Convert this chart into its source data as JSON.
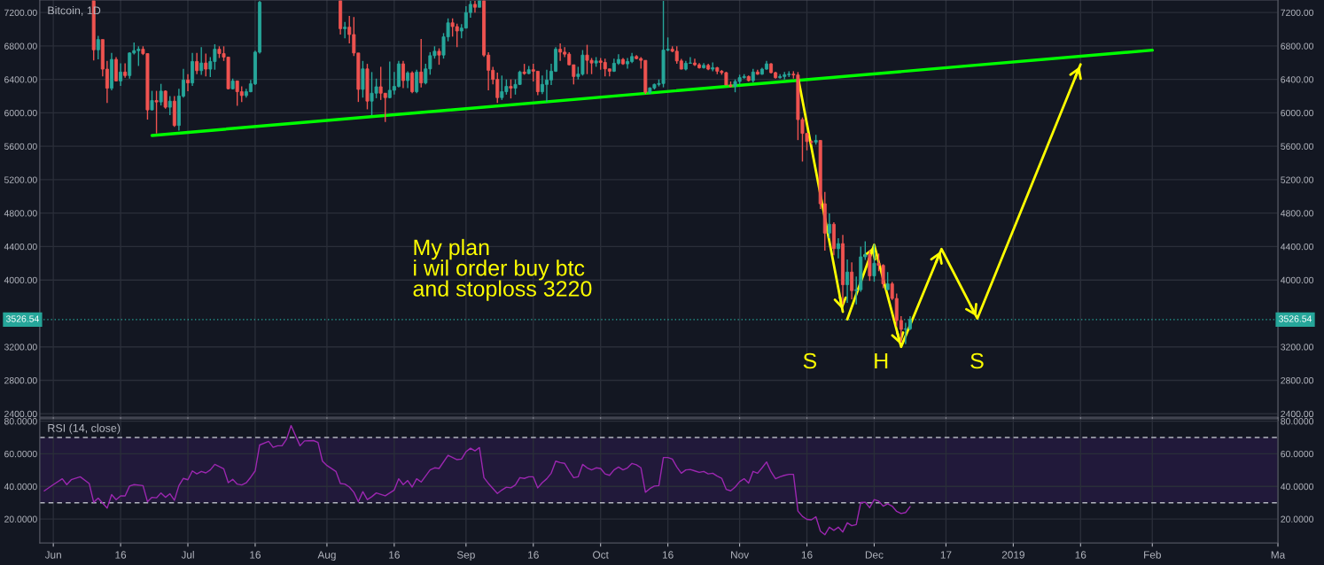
{
  "chart_data": [
    {
      "type": "candlestick",
      "title": "Bitcoin, 1D",
      "x": [
        "2018-06-10",
        "2018-06-11",
        "2018-06-12",
        "2018-06-13",
        "2018-06-14",
        "2018-06-15",
        "2018-06-16",
        "2018-06-17",
        "2018-06-18",
        "2018-06-19",
        "2018-06-20",
        "2018-06-21",
        "2018-06-22",
        "2018-06-23",
        "2018-06-24",
        "2018-06-25",
        "2018-06-26",
        "2018-06-27",
        "2018-06-28",
        "2018-06-29",
        "2018-06-30",
        "2018-07-01",
        "2018-07-02",
        "2018-07-03",
        "2018-07-04",
        "2018-07-05",
        "2018-07-06",
        "2018-07-07",
        "2018-07-08",
        "2018-07-09",
        "2018-07-10",
        "2018-07-11",
        "2018-07-12",
        "2018-07-13",
        "2018-07-14",
        "2018-07-15",
        "2018-07-16",
        "2018-07-17",
        "2018-08-04",
        "2018-08-05",
        "2018-08-06",
        "2018-08-07",
        "2018-08-08",
        "2018-08-09",
        "2018-08-10",
        "2018-08-11",
        "2018-08-12",
        "2018-08-13",
        "2018-08-14",
        "2018-08-15",
        "2018-08-16",
        "2018-08-17",
        "2018-08-18",
        "2018-08-19",
        "2018-08-20",
        "2018-08-21",
        "2018-08-22",
        "2018-08-23",
        "2018-08-24",
        "2018-08-25",
        "2018-08-26",
        "2018-08-27",
        "2018-08-28",
        "2018-08-29",
        "2018-08-30",
        "2018-08-31",
        "2018-09-01",
        "2018-09-02",
        "2018-09-03",
        "2018-09-04",
        "2018-09-05",
        "2018-09-06",
        "2018-09-07",
        "2018-09-08",
        "2018-09-09",
        "2018-09-10",
        "2018-09-11",
        "2018-09-12",
        "2018-09-13",
        "2018-09-14",
        "2018-09-15",
        "2018-09-16",
        "2018-09-17",
        "2018-09-18",
        "2018-09-19",
        "2018-09-20",
        "2018-09-21",
        "2018-09-22",
        "2018-09-23",
        "2018-09-24",
        "2018-09-25",
        "2018-09-26",
        "2018-09-27",
        "2018-09-28",
        "2018-09-29",
        "2018-09-30",
        "2018-10-01",
        "2018-10-02",
        "2018-10-03",
        "2018-10-04",
        "2018-10-05",
        "2018-10-06",
        "2018-10-07",
        "2018-10-08",
        "2018-10-09",
        "2018-10-10",
        "2018-10-11",
        "2018-10-12",
        "2018-10-13",
        "2018-10-14",
        "2018-10-15",
        "2018-10-16",
        "2018-10-17",
        "2018-10-18",
        "2018-10-19",
        "2018-10-20",
        "2018-10-21",
        "2018-10-22",
        "2018-10-23",
        "2018-10-24",
        "2018-10-25",
        "2018-10-26",
        "2018-10-27",
        "2018-10-28",
        "2018-10-29",
        "2018-10-30",
        "2018-10-31",
        "2018-11-01",
        "2018-11-02",
        "2018-11-03",
        "2018-11-04",
        "2018-11-05",
        "2018-11-06",
        "2018-11-07",
        "2018-11-08",
        "2018-11-09",
        "2018-11-10",
        "2018-11-11",
        "2018-11-12",
        "2018-11-13",
        "2018-11-14",
        "2018-11-15",
        "2018-11-16",
        "2018-11-17",
        "2018-11-18",
        "2018-11-19",
        "2018-11-20",
        "2018-11-21",
        "2018-11-22",
        "2018-11-23",
        "2018-11-24",
        "2018-11-25",
        "2018-11-26",
        "2018-11-27",
        "2018-11-28",
        "2018-11-29",
        "2018-11-30",
        "2018-12-01",
        "2018-12-02",
        "2018-12-03",
        "2018-12-04",
        "2018-12-05",
        "2018-12-06",
        "2018-12-07",
        "2018-12-08",
        "2018-12-09"
      ],
      "ohlc": [
        [
          7340,
          7340,
          6628,
          6754
        ],
        [
          6754,
          6920,
          6640,
          6877
        ],
        [
          6877,
          6877,
          6435,
          6523
        ],
        [
          6523,
          6621,
          6119,
          6295
        ],
        [
          6295,
          6716,
          6270,
          6639
        ],
        [
          6639,
          6667,
          6375,
          6382
        ],
        [
          6382,
          6593,
          6323,
          6488
        ],
        [
          6488,
          6593,
          6421,
          6446
        ],
        [
          6446,
          6726,
          6410,
          6716
        ],
        [
          6716,
          6842,
          6698,
          6744
        ],
        [
          6744,
          6796,
          6561,
          6761
        ],
        [
          6761,
          6796,
          6691,
          6709
        ],
        [
          6709,
          6709,
          5919,
          6035
        ],
        [
          6035,
          6263,
          6030,
          6147
        ],
        [
          6147,
          6263,
          5754,
          6130
        ],
        [
          6130,
          6347,
          6088,
          6260
        ],
        [
          6260,
          6270,
          6049,
          6067
        ],
        [
          6067,
          6200,
          5972,
          6140
        ],
        [
          6140,
          6200,
          5831,
          5849
        ],
        [
          5849,
          6288,
          5786,
          6200
        ],
        [
          6200,
          6526,
          6182,
          6393
        ],
        [
          6393,
          6463,
          6260,
          6358
        ],
        [
          6358,
          6716,
          6323,
          6614
        ],
        [
          6614,
          6716,
          6463,
          6505
        ],
        [
          6505,
          6786,
          6456,
          6596
        ],
        [
          6596,
          6709,
          6435,
          6523
        ],
        [
          6523,
          6667,
          6428,
          6614
        ],
        [
          6614,
          6821,
          6516,
          6761
        ],
        [
          6761,
          6796,
          6656,
          6709
        ],
        [
          6709,
          6796,
          6621,
          6667
        ],
        [
          6667,
          6667,
          6280,
          6288
        ],
        [
          6288,
          6410,
          6280,
          6382
        ],
        [
          6382,
          6382,
          6084,
          6253
        ],
        [
          6253,
          6316,
          6130,
          6207
        ],
        [
          6207,
          6288,
          6182,
          6253
        ],
        [
          6253,
          6393,
          6246,
          6347
        ],
        [
          6347,
          6744,
          6333,
          6726
        ],
        [
          6726,
          7340,
          6710,
          7323
        ],
        [
          7340,
          7340,
          6937,
          7007
        ],
        [
          7007,
          7088,
          6891,
          7025
        ],
        [
          7025,
          7158,
          6832,
          6937
        ],
        [
          6937,
          7147,
          6681,
          6716
        ],
        [
          6716,
          6716,
          6130,
          6281
        ],
        [
          6281,
          6621,
          6182,
          6526
        ],
        [
          6526,
          6586,
          6042,
          6140
        ],
        [
          6140,
          6488,
          5972,
          6235
        ],
        [
          6235,
          6410,
          6175,
          6312
        ],
        [
          6312,
          6551,
          6154,
          6235
        ],
        [
          6235,
          6235,
          5891,
          6182
        ],
        [
          6182,
          6614,
          6175,
          6270
        ],
        [
          6270,
          6488,
          6218,
          6316
        ],
        [
          6316,
          6621,
          6305,
          6586
        ],
        [
          6586,
          6621,
          6295,
          6386
        ],
        [
          6386,
          6498,
          6295,
          6477
        ],
        [
          6477,
          6498,
          6235,
          6253
        ],
        [
          6253,
          6516,
          6235,
          6488
        ],
        [
          6488,
          6884,
          6305,
          6358
        ],
        [
          6358,
          6586,
          6340,
          6526
        ],
        [
          6526,
          6726,
          6456,
          6684
        ],
        [
          6684,
          6796,
          6649,
          6737
        ],
        [
          6737,
          6772,
          6575,
          6691
        ],
        [
          6691,
          6954,
          6649,
          6909
        ],
        [
          6909,
          7130,
          6856,
          7077
        ],
        [
          7077,
          7130,
          6912,
          7032
        ],
        [
          7032,
          7067,
          6786,
          6979
        ],
        [
          6979,
          7060,
          6891,
          7014
        ],
        [
          7014,
          7277,
          7007,
          7200
        ],
        [
          7200,
          7340,
          7137,
          7298
        ],
        [
          7298,
          7340,
          7200,
          7263
        ],
        [
          7263,
          7340,
          7263,
          7340
        ],
        [
          7340,
          7340,
          6670,
          6691
        ],
        [
          6691,
          6726,
          6270,
          6509
        ],
        [
          6509,
          6551,
          6340,
          6400
        ],
        [
          6400,
          6481,
          6119,
          6182
        ],
        [
          6182,
          6446,
          6154,
          6253
        ],
        [
          6253,
          6400,
          6218,
          6316
        ],
        [
          6316,
          6400,
          6172,
          6295
        ],
        [
          6295,
          6400,
          6218,
          6340
        ],
        [
          6340,
          6505,
          6333,
          6488
        ],
        [
          6488,
          6586,
          6456,
          6470
        ],
        [
          6470,
          6561,
          6463,
          6516
        ],
        [
          6516,
          6586,
          6375,
          6498
        ],
        [
          6498,
          6498,
          6210,
          6253
        ],
        [
          6253,
          6446,
          6224,
          6340
        ],
        [
          6340,
          6516,
          6130,
          6393
        ],
        [
          6393,
          6586,
          6333,
          6498
        ],
        [
          6498,
          6786,
          6488,
          6761
        ],
        [
          6761,
          6832,
          6621,
          6726
        ],
        [
          6726,
          6786,
          6667,
          6702
        ],
        [
          6702,
          6726,
          6568,
          6575
        ],
        [
          6575,
          6575,
          6340,
          6435
        ],
        [
          6435,
          6551,
          6400,
          6463
        ],
        [
          6463,
          6751,
          6446,
          6691
        ],
        [
          6691,
          6814,
          6463,
          6628
        ],
        [
          6628,
          6656,
          6463,
          6596
        ],
        [
          6596,
          6667,
          6551,
          6621
        ],
        [
          6621,
          6656,
          6516,
          6603
        ],
        [
          6603,
          6649,
          6435,
          6526
        ],
        [
          6526,
          6526,
          6435,
          6498
        ],
        [
          6498,
          6649,
          6490,
          6593
        ],
        [
          6593,
          6702,
          6575,
          6639
        ],
        [
          6639,
          6656,
          6575,
          6586
        ],
        [
          6586,
          6656,
          6530,
          6614
        ],
        [
          6614,
          6716,
          6596,
          6674
        ],
        [
          6674,
          6691,
          6639,
          6649
        ],
        [
          6649,
          6667,
          6530,
          6628
        ],
        [
          6628,
          6628,
          6225,
          6246
        ],
        [
          6246,
          6305,
          6225,
          6298
        ],
        [
          6298,
          6350,
          6280,
          6340
        ],
        [
          6340,
          6400,
          6316,
          6351
        ],
        [
          6351,
          7340,
          6305,
          6751
        ],
        [
          6751,
          6902,
          6737,
          6761
        ],
        [
          6761,
          6796,
          6726,
          6737
        ],
        [
          6737,
          6796,
          6586,
          6621
        ],
        [
          6621,
          6646,
          6520,
          6523
        ],
        [
          6523,
          6621,
          6509,
          6593
        ],
        [
          6593,
          6667,
          6586,
          6596
        ],
        [
          6596,
          6649,
          6561,
          6575
        ],
        [
          6575,
          6596,
          6530,
          6540
        ],
        [
          6540,
          6596,
          6530,
          6568
        ],
        [
          6568,
          6586,
          6510,
          6523
        ],
        [
          6523,
          6603,
          6498,
          6540
        ],
        [
          6540,
          6551,
          6463,
          6498
        ],
        [
          6498,
          6512,
          6456,
          6481
        ],
        [
          6481,
          6491,
          6333,
          6333
        ],
        [
          6333,
          6375,
          6305,
          6316
        ],
        [
          6316,
          6400,
          6246,
          6375
        ],
        [
          6375,
          6456,
          6340,
          6421
        ],
        [
          6421,
          6463,
          6410,
          6435
        ],
        [
          6435,
          6446,
          6375,
          6386
        ],
        [
          6386,
          6526,
          6365,
          6488
        ],
        [
          6488,
          6516,
          6456,
          6463
        ],
        [
          6463,
          6540,
          6456,
          6523
        ],
        [
          6523,
          6621,
          6516,
          6586
        ],
        [
          6586,
          6596,
          6470,
          6481
        ],
        [
          6481,
          6491,
          6410,
          6421
        ],
        [
          6421,
          6463,
          6410,
          6435
        ],
        [
          6435,
          6488,
          6400,
          6456
        ],
        [
          6456,
          6498,
          6428,
          6463
        ],
        [
          6463,
          6498,
          6410,
          6453
        ],
        [
          6453,
          6488,
          5674,
          5919
        ],
        [
          5919,
          5945,
          5417,
          5754
        ],
        [
          5754,
          5754,
          5551,
          5656
        ],
        [
          5656,
          5670,
          5620,
          5649
        ],
        [
          5649,
          5737,
          5620,
          5670
        ],
        [
          5670,
          5670,
          4850,
          4912
        ],
        [
          4912,
          5053,
          4351,
          4561
        ],
        [
          4561,
          4796,
          4500,
          4667
        ],
        [
          4667,
          4690,
          4295,
          4375
        ],
        [
          4375,
          4500,
          4260,
          4435
        ],
        [
          4435,
          4540,
          3709,
          3944
        ],
        [
          3944,
          4245,
          3726,
          4095
        ],
        [
          4095,
          4210,
          3768,
          3873
        ],
        [
          3873,
          4042,
          3709,
          3884
        ],
        [
          3884,
          4400,
          3860,
          4277
        ],
        [
          4277,
          4463,
          4240,
          4305
        ],
        [
          4305,
          4358,
          3989,
          4049
        ],
        [
          4049,
          4428,
          3979,
          4200
        ],
        [
          4200,
          4316,
          4105,
          4175
        ],
        [
          4175,
          4189,
          3902,
          3954
        ],
        [
          3884,
          4095,
          3884,
          3954
        ],
        [
          3954,
          3979,
          3761,
          3779
        ],
        [
          3779,
          3839,
          3446,
          3516
        ],
        [
          3516,
          3568,
          3252,
          3410
        ],
        [
          3410,
          3488,
          3235,
          3416
        ],
        [
          3416,
          3568,
          3400,
          3527
        ]
      ],
      "series": [
        {
          "type": "line",
          "color": "#00ff00",
          "x": [
            "2018-06-23",
            "2019-02-01"
          ],
          "values": [
            5730,
            6750
          ]
        },
        {
          "type": "line",
          "color": "#ffff00",
          "x": [
            "2018-11-14",
            "2018-11-24"
          ],
          "values": [
            6430,
            3620
          ]
        },
        {
          "type": "line",
          "color": "#ffff00",
          "x": [
            "2018-11-25",
            "2018-12-01",
            "2018-12-07",
            "2018-12-16",
            "2018-12-24",
            "2019-01-16"
          ],
          "values": [
            3530,
            4420,
            3200,
            4370,
            3540,
            6580
          ]
        }
      ],
      "ref_lines": [
        {
          "axis": "y",
          "value": 3526.54,
          "label": "3526.54",
          "color": "#26a69a",
          "line_style": "dotted"
        }
      ],
      "annotations": [
        "My plan\ni wil order buy btc\nand stoploss 3220",
        "S",
        "H",
        "S"
      ],
      "xlim": [
        "2018-05-29",
        "2019-03-01"
      ],
      "xticks": [
        {
          "value": "2018-06-01",
          "label": null
        },
        {
          "value": "2018-06-16",
          "label": null
        },
        {
          "value": "2018-07-01",
          "label": null
        },
        {
          "value": "2018-07-16",
          "label": null
        },
        {
          "value": "2018-08-01",
          "label": null
        },
        {
          "value": "2018-08-16",
          "label": null
        },
        {
          "value": "2018-09-01",
          "label": null
        },
        {
          "value": "2018-09-16",
          "label": null
        },
        {
          "value": "2018-10-01",
          "label": null
        },
        {
          "value": "2018-10-16",
          "label": null
        },
        {
          "value": "2018-11-01",
          "label": null
        },
        {
          "value": "2018-11-16",
          "label": null
        },
        {
          "value": "2018-12-01",
          "label": null
        },
        {
          "value": "2018-12-17",
          "label": null
        },
        {
          "value": "2019-01-01",
          "label": null
        },
        {
          "value": "2019-01-16",
          "label": null
        },
        {
          "value": "2019-02-01",
          "label": null
        },
        {
          "value": "2019-03-01",
          "label": null
        }
      ],
      "ylim": [
        2360,
        7350
      ],
      "yticks": [
        {
          "value": 2400,
          "label": "2400.00"
        },
        {
          "value": 2800,
          "label": "2800.00"
        },
        {
          "value": 3200,
          "label": "3200.00"
        },
        {
          "value": 4000,
          "label": "4000.00"
        },
        {
          "value": 4400,
          "label": "4400.00"
        },
        {
          "value": 4800,
          "label": "4800.00"
        },
        {
          "value": 5200,
          "label": "5200.00"
        },
        {
          "value": 5600,
          "label": "5600.00"
        },
        {
          "value": 6000,
          "label": "6000.00"
        },
        {
          "value": 6400,
          "label": "6400.00"
        },
        {
          "value": 6800,
          "label": "6800.00"
        },
        {
          "value": 7200,
          "label": "7200.00"
        }
      ],
      "y2lim": [
        2360,
        7350
      ],
      "y2ticks": [
        {
          "value": 2400,
          "label": "2400.00"
        },
        {
          "value": 2800,
          "label": "2800.00"
        },
        {
          "value": 3200,
          "label": "3200.00"
        },
        {
          "value": 4000,
          "label": "4000.00"
        },
        {
          "value": 4400,
          "label": "4400.00"
        },
        {
          "value": 4800,
          "label": "4800.00"
        },
        {
          "value": 5200,
          "label": "5200.00"
        },
        {
          "value": 5600,
          "label": "5600.00"
        },
        {
          "value": 6000,
          "label": "6000.00"
        },
        {
          "value": 6400,
          "label": "6400.00"
        },
        {
          "value": 6800,
          "label": "6800.00"
        },
        {
          "value": 7200,
          "label": "7200.00"
        }
      ],
      "grid": true,
      "tick_labels": "y"
    },
    {
      "type": "line",
      "annotations": [
        "RSI (14, close)"
      ],
      "series": [
        {
          "color": "#9c27b0",
          "x": [
            "2018-05-30",
            "2018-06-01",
            "2018-06-03",
            "2018-06-04",
            "2018-06-05",
            "2018-06-07",
            "2018-06-09",
            "2018-06-10",
            "2018-06-11",
            "2018-06-13",
            "2018-06-14",
            "2018-06-15",
            "2018-06-16",
            "2018-06-17",
            "2018-06-18",
            "2018-06-19",
            "2018-06-21",
            "2018-06-22",
            "2018-06-23",
            "2018-06-24",
            "2018-06-25",
            "2018-06-26",
            "2018-06-27",
            "2018-06-28",
            "2018-06-29",
            "2018-06-30",
            "2018-07-01",
            "2018-07-02",
            "2018-07-03",
            "2018-07-04",
            "2018-07-05",
            "2018-07-06",
            "2018-07-07",
            "2018-07-09",
            "2018-07-10",
            "2018-07-11",
            "2018-07-12",
            "2018-07-13",
            "2018-07-14",
            "2018-07-15",
            "2018-07-16",
            "2018-07-17",
            "2018-07-19",
            "2018-07-20",
            "2018-07-21",
            "2018-07-22",
            "2018-07-23",
            "2018-07-24",
            "2018-07-26",
            "2018-07-27",
            "2018-07-29",
            "2018-07-30",
            "2018-07-31",
            "2018-08-01",
            "2018-08-03",
            "2018-08-04",
            "2018-08-05",
            "2018-08-06",
            "2018-08-07",
            "2018-08-08",
            "2018-08-09",
            "2018-08-10",
            "2018-08-11",
            "2018-08-12",
            "2018-08-14",
            "2018-08-16",
            "2018-08-17",
            "2018-08-18",
            "2018-08-19",
            "2018-08-20",
            "2018-08-21",
            "2018-08-22",
            "2018-08-24",
            "2018-08-25",
            "2018-08-26",
            "2018-08-28",
            "2018-08-30",
            "2018-08-31",
            "2018-09-01",
            "2018-09-02",
            "2018-09-03",
            "2018-09-04",
            "2018-09-05",
            "2018-09-06",
            "2018-09-08",
            "2018-09-09",
            "2018-09-10",
            "2018-09-11",
            "2018-09-12",
            "2018-09-13",
            "2018-09-14",
            "2018-09-15",
            "2018-09-16",
            "2018-09-17",
            "2018-09-18",
            "2018-09-19",
            "2018-09-20",
            "2018-09-21",
            "2018-09-22",
            "2018-09-23",
            "2018-09-24",
            "2018-09-25",
            "2018-09-26",
            "2018-09-27",
            "2018-09-28",
            "2018-09-29",
            "2018-09-30",
            "2018-10-01",
            "2018-10-02",
            "2018-10-03",
            "2018-10-04",
            "2018-10-05",
            "2018-10-06",
            "2018-10-07",
            "2018-10-08",
            "2018-10-09",
            "2018-10-10",
            "2018-10-11",
            "2018-10-12",
            "2018-10-13",
            "2018-10-14",
            "2018-10-15",
            "2018-10-16",
            "2018-10-17",
            "2018-10-18",
            "2018-10-19",
            "2018-10-20",
            "2018-10-21",
            "2018-10-22",
            "2018-10-23",
            "2018-10-24",
            "2018-10-25",
            "2018-10-26",
            "2018-10-27",
            "2018-10-28",
            "2018-10-29",
            "2018-10-30",
            "2018-10-31",
            "2018-11-01",
            "2018-11-02",
            "2018-11-03",
            "2018-11-04",
            "2018-11-05",
            "2018-11-06",
            "2018-11-07",
            "2018-11-08",
            "2018-11-09",
            "2018-11-10",
            "2018-11-11",
            "2018-11-12",
            "2018-11-13",
            "2018-11-14",
            "2018-11-15",
            "2018-11-16",
            "2018-11-17",
            "2018-11-18",
            "2018-11-19",
            "2018-11-20",
            "2018-11-21",
            "2018-11-22",
            "2018-11-23",
            "2018-11-24",
            "2018-11-25",
            "2018-11-26",
            "2018-11-27",
            "2018-11-28",
            "2018-11-29",
            "2018-11-30",
            "2018-12-01",
            "2018-12-02",
            "2018-12-03",
            "2018-12-04",
            "2018-12-05",
            "2018-12-06",
            "2018-12-07",
            "2018-12-08",
            "2018-12-09"
          ],
          "values": [
            37.3,
            41.1,
            44.7,
            41.1,
            44.1,
            45.9,
            41.8,
            30.3,
            32.8,
            26.7,
            35.0,
            31.9,
            34.2,
            34.2,
            40.2,
            41.1,
            40.5,
            30.6,
            33.3,
            33.0,
            36.0,
            33.3,
            35.5,
            31.5,
            40.5,
            44.9,
            44.1,
            49.5,
            47.7,
            49.2,
            48.3,
            50.1,
            53.5,
            50.8,
            42.3,
            44.3,
            41.4,
            40.9,
            42.2,
            45.6,
            49.5,
            65.4,
            67.6,
            64.0,
            64.9,
            64.9,
            69.0,
            77.3,
            64.9,
            67.9,
            68.1,
            67.0,
            55.5,
            52.8,
            49.2,
            41.8,
            41.4,
            39.6,
            36.4,
            30.6,
            36.8,
            31.9,
            33.7,
            36.0,
            34.2,
            37.8,
            44.7,
            41.1,
            43.6,
            39.6,
            44.7,
            42.7,
            50.1,
            51.4,
            51.0,
            59.1,
            56.4,
            56.8,
            61.3,
            63.4,
            61.8,
            63.8,
            45.4,
            41.8,
            35.7,
            37.8,
            39.5,
            39.1,
            40.9,
            45.4,
            44.9,
            45.9,
            45.9,
            39.1,
            42.3,
            44.7,
            48.1,
            55.5,
            54.6,
            54.1,
            49.5,
            45.4,
            45.9,
            53.5,
            51.4,
            50.1,
            51.4,
            51.0,
            47.7,
            46.8,
            50.1,
            51.9,
            50.1,
            51.4,
            54.1,
            53.2,
            51.4,
            36.4,
            38.7,
            40.2,
            40.5,
            57.7,
            57.7,
            56.8,
            51.9,
            48.1,
            50.1,
            50.4,
            49.5,
            48.6,
            49.2,
            47.7,
            48.1,
            46.3,
            45.0,
            38.2,
            37.3,
            39.6,
            42.9,
            44.7,
            42.0,
            49.2,
            48.1,
            51.4,
            55.0,
            49.0,
            44.7,
            45.9,
            46.8,
            47.4,
            47.4,
            24.9,
            21.6,
            19.8,
            19.5,
            21.4,
            12.6,
            10.4,
            15.0,
            13.1,
            15.0,
            12.1,
            17.7,
            15.9,
            16.6,
            30.1,
            30.3,
            27.0,
            31.9,
            31.0,
            27.9,
            29.4,
            27.9,
            24.7,
            23.4,
            24.0,
            27.6
          ]
        }
      ],
      "bands": [
        {
          "axis": "y",
          "from": 30,
          "to": 70,
          "color": "#21193a"
        }
      ],
      "ref_lines": [
        {
          "axis": "y",
          "value": 70,
          "color": "#b2b5be",
          "line_style": "dashed"
        },
        {
          "axis": "y",
          "value": 30,
          "color": "#b2b5be",
          "line_style": "dashed"
        }
      ],
      "xlim": [
        "2018-05-29",
        "2019-03-01"
      ],
      "xticks": [
        {
          "value": "2018-06-01",
          "label": "Jun"
        },
        {
          "value": "2018-06-16",
          "label": "16"
        },
        {
          "value": "2018-07-01",
          "label": "Jul"
        },
        {
          "value": "2018-07-16",
          "label": "16"
        },
        {
          "value": "2018-08-01",
          "label": "Aug"
        },
        {
          "value": "2018-08-16",
          "label": "16"
        },
        {
          "value": "2018-09-01",
          "label": "Sep"
        },
        {
          "value": "2018-09-16",
          "label": "16"
        },
        {
          "value": "2018-10-01",
          "label": "Oct"
        },
        {
          "value": "2018-10-16",
          "label": "16"
        },
        {
          "value": "2018-11-01",
          "label": "Nov"
        },
        {
          "value": "2018-11-16",
          "label": "16"
        },
        {
          "value": "2018-12-01",
          "label": "Dec"
        },
        {
          "value": "2018-12-17",
          "label": "17"
        },
        {
          "value": "2019-01-01",
          "label": "2019"
        },
        {
          "value": "2019-01-16",
          "label": "16"
        },
        {
          "value": "2019-02-01",
          "label": "Feb"
        },
        {
          "value": "2019-03-01",
          "label": "Ma"
        }
      ],
      "ylim": [
        5.4,
        81.4
      ],
      "yticks": [
        {
          "value": 20,
          "label": "20.0000"
        },
        {
          "value": 40,
          "label": "40.0000"
        },
        {
          "value": 60,
          "label": "60.0000"
        },
        {
          "value": 80,
          "label": "80.0000"
        }
      ],
      "y2lim": [
        5.4,
        81.4
      ],
      "y2ticks": [
        {
          "value": 20,
          "label": "20.0000"
        },
        {
          "value": 40,
          "label": "40.0000"
        },
        {
          "value": 60,
          "label": "60.0000"
        },
        {
          "value": 80,
          "label": "80.0000"
        }
      ],
      "grid": true
    }
  ]
}
